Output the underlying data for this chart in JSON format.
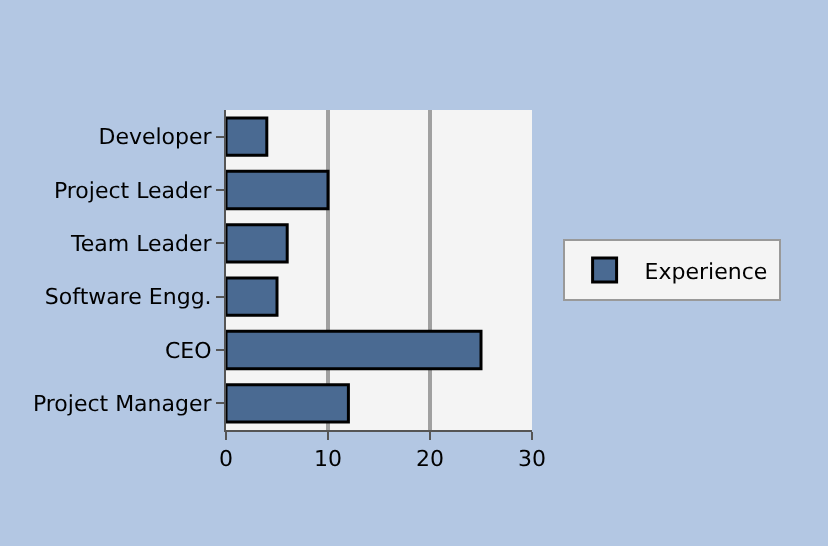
{
  "chart_data": {
    "type": "bar",
    "orientation": "horizontal",
    "categories": [
      "Developer",
      "Project Leader",
      "Team Leader",
      "Software Engg.",
      "CEO",
      "Project Manager"
    ],
    "series": [
      {
        "name": "Experience",
        "color": "#4a6a92",
        "values": [
          4,
          10,
          6,
          5,
          25,
          12
        ]
      }
    ],
    "xlim": [
      0,
      30
    ],
    "xticks": [
      0,
      10,
      20,
      30
    ],
    "grid": "x",
    "legend": "right"
  }
}
